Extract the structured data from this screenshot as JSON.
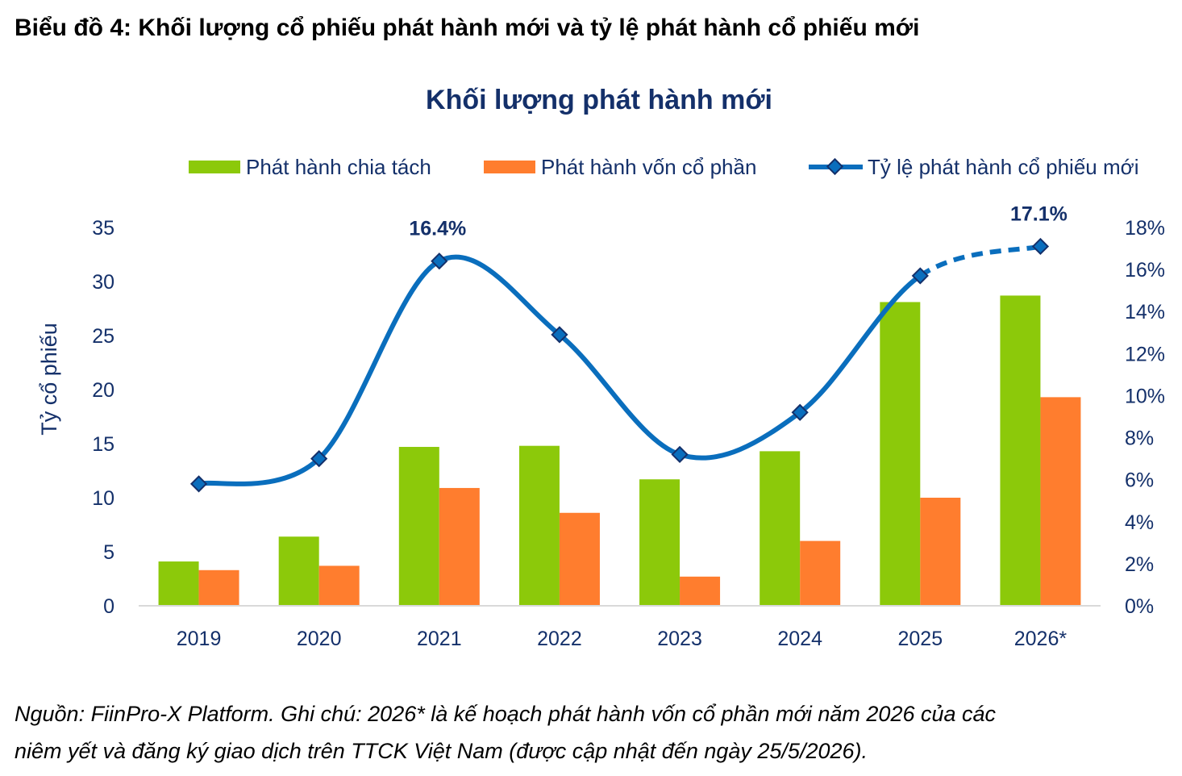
{
  "heading": "Biểu đồ 4: Khối lượng cổ phiếu phát hành mới và tỷ lệ phát hành cổ phiếu mới",
  "note": {
    "line1": "Nguồn: FiinPro-X Platform. Ghi chú: 2026* là kế hoạch phát hành vốn cổ phần mới năm 2026 của các",
    "line2": "niêm yết và đăng ký giao dịch trên TTCK Việt Nam (được cập nhật đến ngày 25/5/2026)."
  },
  "colors": {
    "split": "#8CC90A",
    "equity": "#FF7D2E",
    "ratio": "#0A6EBD",
    "navy": "#14306A"
  },
  "chart_data": {
    "type": "bar",
    "title": "Khối lượng phát hành mới",
    "ylabel": "Tỷ cổ phiếu",
    "ylim": [
      0,
      35
    ],
    "yticks": [
      "0",
      "5",
      "10",
      "15",
      "20",
      "25",
      "30",
      "35"
    ],
    "y2lim": [
      0,
      18
    ],
    "y2ticks": [
      "0%",
      "2%",
      "4%",
      "6%",
      "8%",
      "10%",
      "12%",
      "14%",
      "16%",
      "18%"
    ],
    "categories": [
      "2019",
      "2020",
      "2021",
      "2022",
      "2023",
      "2024",
      "2025",
      "2026*"
    ],
    "series": [
      {
        "name": "Phát hành chia tách",
        "type": "bar",
        "values": [
          4.1,
          6.4,
          14.7,
          14.8,
          11.7,
          14.3,
          28.1,
          28.7
        ]
      },
      {
        "name": "Phát hành vốn cổ phần",
        "type": "bar",
        "values": [
          3.3,
          3.7,
          10.9,
          8.6,
          2.7,
          6.0,
          10.0,
          19.3
        ]
      },
      {
        "name": "Tỷ lệ phát hành cổ phiếu mới",
        "type": "line",
        "axis": "right",
        "values": [
          5.8,
          7.0,
          16.4,
          12.9,
          7.2,
          9.2,
          15.7,
          17.1
        ],
        "forecast_from_index": 6
      }
    ],
    "annotations": [
      {
        "category": "2021",
        "text": "16.4%"
      },
      {
        "category": "2026*",
        "text": "17.1%"
      }
    ],
    "legend": "top",
    "grid": false
  }
}
